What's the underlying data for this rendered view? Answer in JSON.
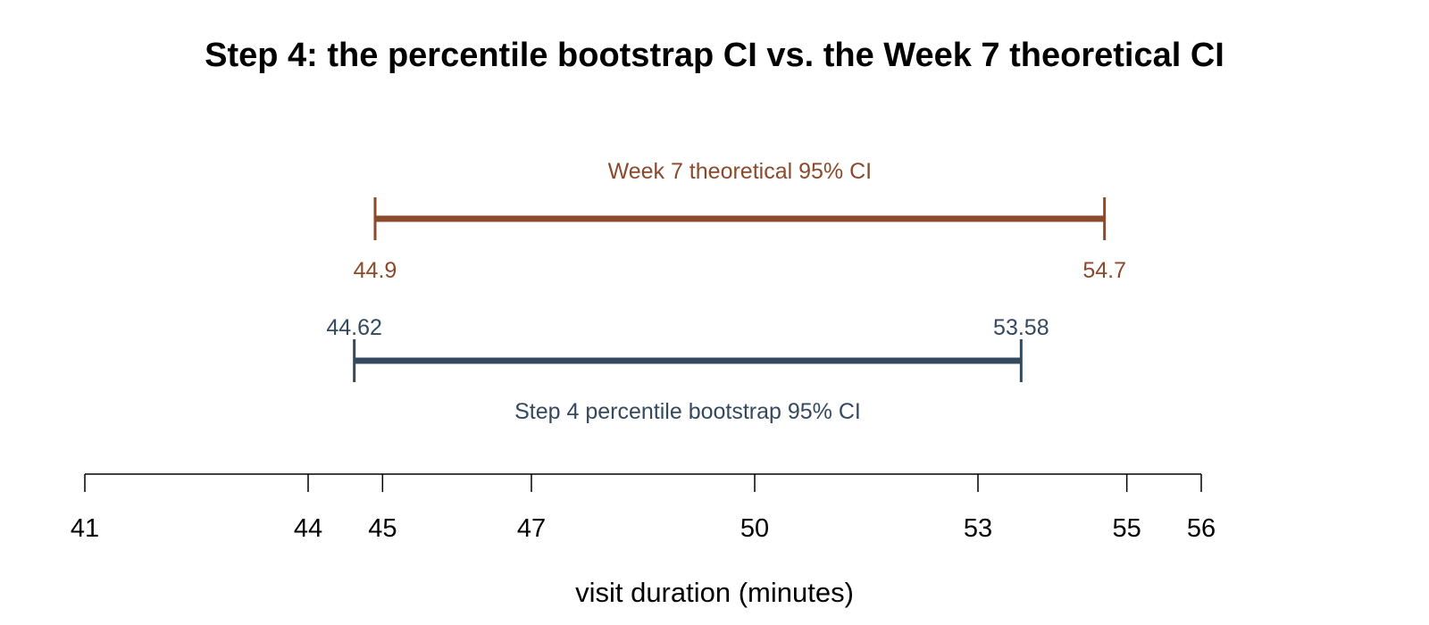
{
  "chart_data": {
    "type": "interval",
    "title": "Step 4: the percentile bootstrap CI vs. the Week 7 theoretical CI",
    "xlabel": "visit duration (minutes)",
    "xlim": [
      41,
      56
    ],
    "ticks": [
      41,
      44,
      45,
      47,
      50,
      53,
      55,
      56
    ],
    "tick_labels": [
      "41",
      "44",
      "45",
      "47",
      "50",
      "53",
      "55",
      "56"
    ],
    "intervals": [
      {
        "name": "Week 7 theoretical 95% CI",
        "lower": 44.9,
        "upper": 54.7,
        "lower_label": "44.9",
        "upper_label": "54.7",
        "color": "#8B4A2B"
      },
      {
        "name": "Step 4 percentile bootstrap 95% CI",
        "lower": 44.62,
        "upper": 53.58,
        "lower_label": "44.62",
        "upper_label": "53.58",
        "color": "#34495E"
      }
    ],
    "grid": false,
    "legend": "none"
  }
}
